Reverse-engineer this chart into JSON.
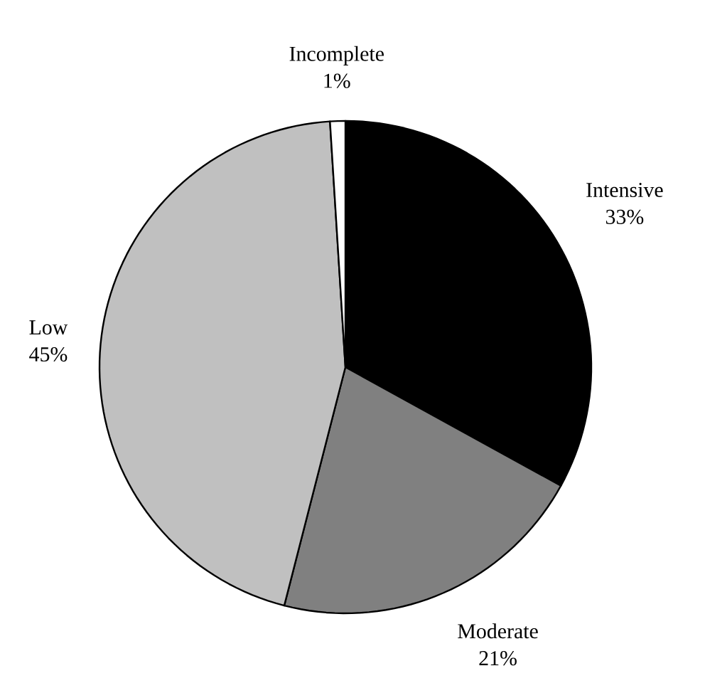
{
  "chart_data": {
    "type": "pie",
    "categories": [
      "Intensive",
      "Moderate",
      "Low",
      "Incomplete"
    ],
    "values": [
      33,
      21,
      45,
      1
    ],
    "colors": [
      "#000000",
      "#808080",
      "#c0c0c0",
      "#ffffff"
    ],
    "value_labels": [
      "33%",
      "21%",
      "45%",
      "1%"
    ]
  }
}
